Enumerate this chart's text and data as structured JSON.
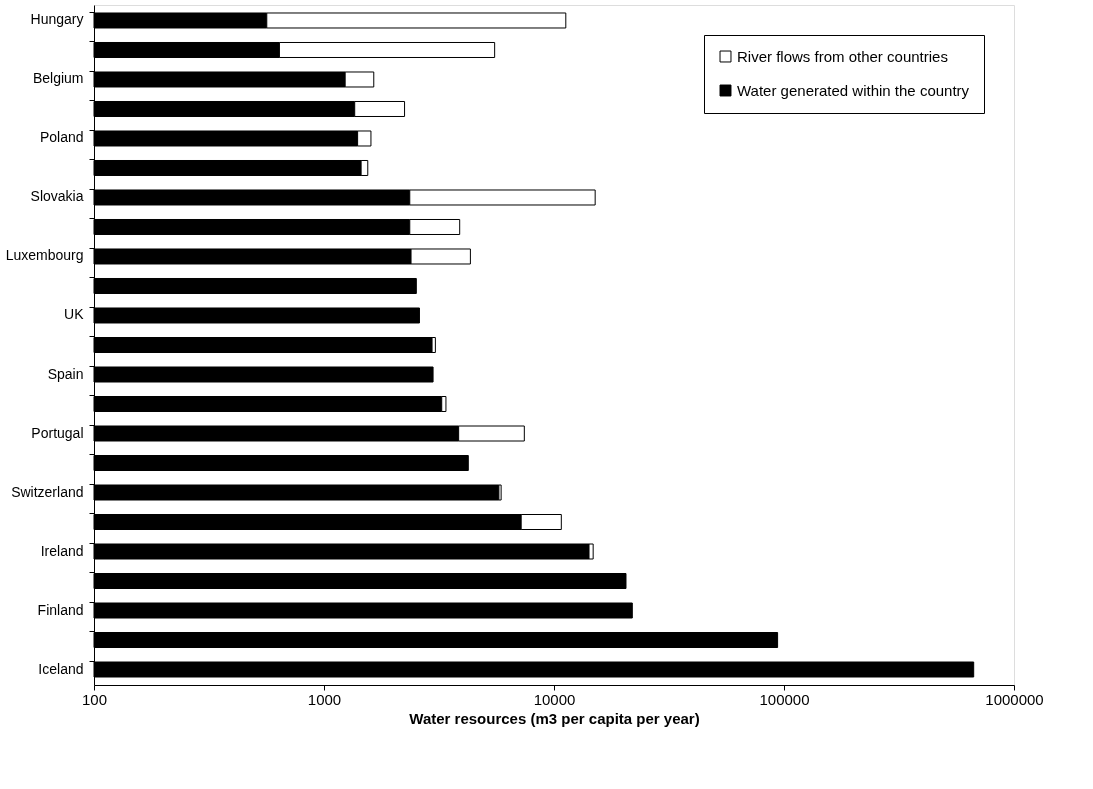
{
  "chart_data": {
    "type": "bar",
    "orientation": "horizontal",
    "stacked": true,
    "log": "x",
    "xlabel": "Water resources (m3 per capita per year)",
    "categories": [
      "Hungary",
      null,
      "Belgium",
      null,
      "Poland",
      null,
      "Slovakia",
      null,
      "Luxembourg",
      null,
      "UK",
      null,
      "Spain",
      null,
      "Portugal",
      null,
      "Switzerland",
      null,
      "Ireland",
      null,
      "Finland",
      null,
      "Iceland"
    ],
    "series": [
      {
        "name": "Water generated within the country",
        "color": "#000000",
        "values": [
          564,
          640,
          1236,
          1360,
          1400,
          1450,
          2360,
          2360,
          2390,
          2520,
          2600,
          2950,
          2980,
          3250,
          3850,
          4240,
          5760,
          7200,
          14200,
          20560,
          21900,
          93800,
          668000
        ]
      },
      {
        "name": "River flows from other countries",
        "color": "#ffffff",
        "values": [
          10690,
          4880,
          410,
          880,
          200,
          100,
          12740,
          1530,
          1940,
          null,
          null,
          100,
          null,
          140,
          3580,
          null,
          130,
          3560,
          600,
          null,
          null,
          null,
          null
        ]
      }
    ],
    "xlim": [
      100,
      1000000
    ],
    "xticks": [
      100,
      1000,
      10000,
      100000,
      1000000
    ],
    "legend": "top right",
    "grid": false
  }
}
